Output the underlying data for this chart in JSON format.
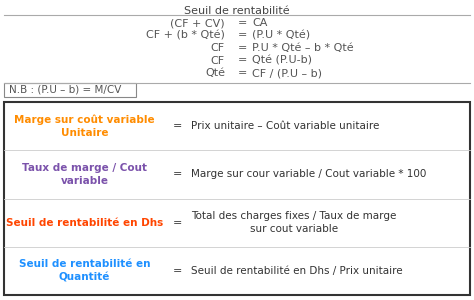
{
  "title": "Seuil de rentabilité",
  "formulas": [
    {
      "left": "(CF + CV)",
      "eq": "=",
      "right": "CA"
    },
    {
      "left": "CF + (b * Qté)",
      "eq": "=",
      "right": "(P.U * Qté)"
    },
    {
      "left": "CF",
      "eq": "=",
      "right": "P.U * Qté – b * Qté"
    },
    {
      "left": "CF",
      "eq": "=",
      "right": "Qté (P.U-b)"
    },
    {
      "left": "Qté",
      "eq": "=",
      "right": "CF / (P.U – b)"
    }
  ],
  "nb_text": "N.B : (P.U – b) = M/CV",
  "box_rows": [
    {
      "left_text": "Marge sur coût variable\nUnitaire",
      "left_color": "#FF8C00",
      "eq": "=",
      "right_text": "Prix unitaire – Coût variable unitaire"
    },
    {
      "left_text": "Taux de marge / Cout\nvariable",
      "left_color": "#7B52AB",
      "eq": "=",
      "right_text": "Marge sur cour variable / Cout variable * 100"
    },
    {
      "left_text": "Seuil de rentabilité en Dhs",
      "left_color": "#FF4500",
      "eq": "=",
      "right_text": "Total des charges fixes / Taux de marge\nsur cout variable"
    },
    {
      "left_text": "Seuil de rentabilité en\nQuantité",
      "left_color": "#1E90FF",
      "eq": "=",
      "right_text": "Seuil de rentabilité en Dhs / Prix unitaire"
    }
  ],
  "bg_color": "#FFFFFF",
  "formula_text_color": "#555555",
  "title_color": "#444444",
  "figsize": [
    4.74,
    3.0
  ],
  "dpi": 100
}
